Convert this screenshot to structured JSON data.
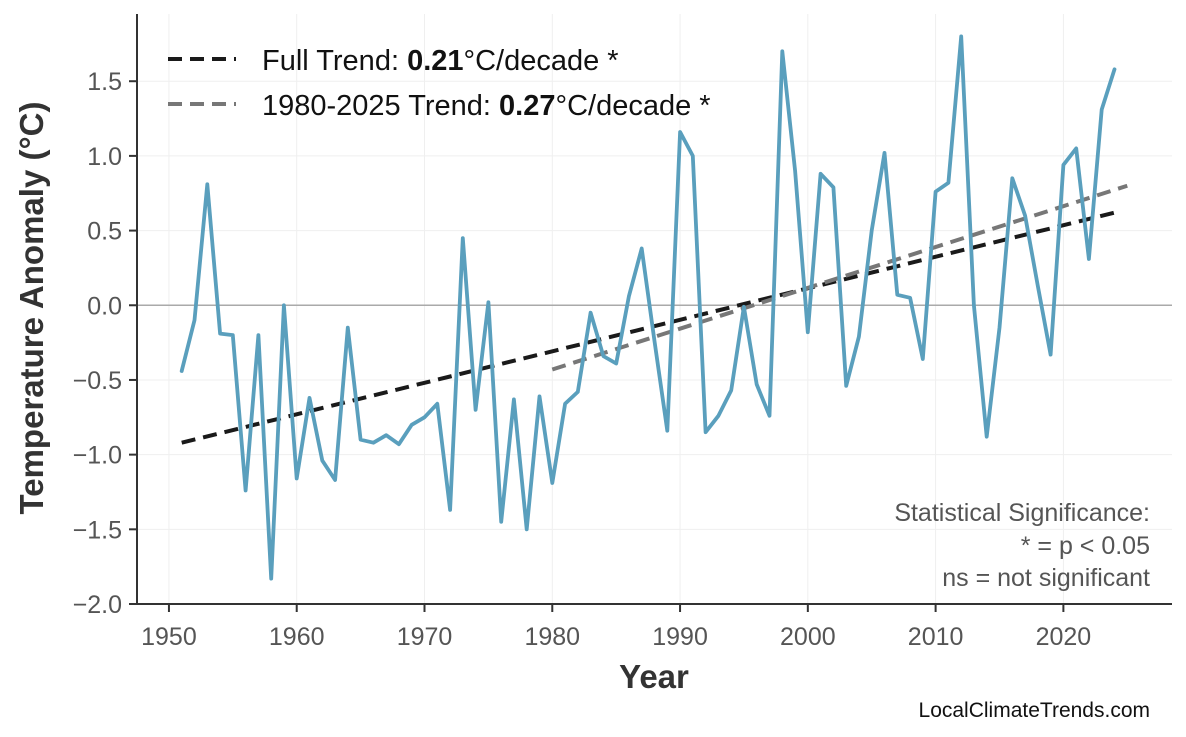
{
  "chart_data": {
    "type": "line",
    "title": "",
    "xlabel": "Year",
    "ylabel": "Temperature Anomaly (°C)",
    "xlim": [
      1947.5,
      2028.5
    ],
    "ylim": [
      -2.0,
      1.95
    ],
    "x_ticks": [
      1950,
      1960,
      1970,
      1980,
      1990,
      2000,
      2010,
      2020
    ],
    "y_ticks": [
      -2.0,
      -1.5,
      -1.0,
      -0.5,
      0.0,
      0.5,
      1.0,
      1.5
    ],
    "y_tick_labels": [
      "−2.0",
      "−1.5",
      "−1.0",
      "−0.5",
      "0.0",
      "0.5",
      "1.0",
      "1.5"
    ],
    "grid": true,
    "zero_line": 0,
    "legend_position": "top-left",
    "colors": {
      "series": "#5a9fbd",
      "full_trend": "#1a1a1a",
      "recent_trend": "#777777",
      "axis": "#333333",
      "tick_text": "#555555",
      "grid": "#efefef",
      "zero": "#aaaaaa"
    },
    "series": [
      {
        "x": [
          1951,
          1952,
          1953,
          1954,
          1955,
          1956,
          1957,
          1958,
          1959,
          1960,
          1961,
          1962,
          1963,
          1964,
          1965,
          1966,
          1967,
          1968,
          1969,
          1970,
          1971,
          1972,
          1973,
          1974,
          1975,
          1976,
          1977,
          1978,
          1979,
          1980,
          1981,
          1982,
          1983,
          1984,
          1985,
          1986,
          1987,
          1988,
          1989,
          1990,
          1991,
          1992,
          1993,
          1994,
          1995,
          1996,
          1997,
          1998,
          1999,
          2000,
          2001,
          2002,
          2003,
          2004,
          2005,
          2006,
          2007,
          2008,
          2009,
          2010,
          2011,
          2012,
          2013,
          2014,
          2015,
          2016,
          2017,
          2018,
          2019,
          2020,
          2021,
          2022,
          2023,
          2024
        ],
        "values": [
          -0.44,
          -0.1,
          0.81,
          -0.19,
          -0.2,
          -1.24,
          -0.2,
          -1.83,
          0.0,
          -1.16,
          -0.62,
          -1.04,
          -1.17,
          -0.15,
          -0.9,
          -0.92,
          -0.87,
          -0.93,
          -0.8,
          -0.75,
          -0.66,
          -1.37,
          0.45,
          -0.7,
          0.02,
          -1.45,
          -0.63,
          -1.5,
          -0.61,
          -1.19,
          -0.66,
          -0.58,
          -0.05,
          -0.34,
          -0.39,
          0.06,
          0.38,
          -0.24,
          -0.84,
          1.16,
          1.0,
          -0.85,
          -0.74,
          -0.57,
          -0.01,
          -0.53,
          -0.74,
          1.7,
          0.9,
          -0.18,
          0.88,
          0.79,
          -0.54,
          -0.21,
          0.5,
          1.02,
          0.07,
          0.05,
          -0.36,
          0.76,
          0.82,
          1.8,
          0.0,
          -0.88,
          -0.15,
          0.85,
          0.6,
          0.13,
          -0.33,
          0.94,
          1.05,
          0.31,
          1.31,
          1.58
        ]
      }
    ],
    "trends": [
      {
        "label": "Full Trend: ",
        "rate": "0.21",
        "unit": "°C/decade *",
        "x": [
          1951,
          2024
        ],
        "y": [
          -0.92,
          0.62
        ]
      },
      {
        "label": "1980-2025 Trend: ",
        "rate": "0.27",
        "unit": "°C/decade *",
        "x": [
          1980,
          2025
        ],
        "y": [
          -0.43,
          0.8
        ]
      }
    ],
    "annotation": [
      "Statistical Significance:",
      "* = p < 0.05",
      "ns = not significant"
    ],
    "watermark": "LocalClimateTrends.com"
  }
}
